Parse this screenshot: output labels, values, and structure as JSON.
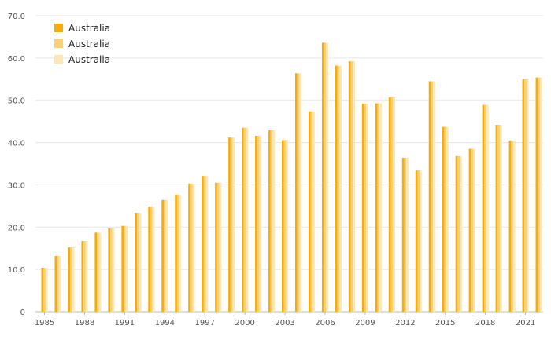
{
  "chart_data": {
    "type": "bar",
    "title": "",
    "xlabel": "",
    "ylabel": "",
    "ylim": [
      0,
      70
    ],
    "y_ticks": [
      "0",
      "10.0",
      "20.0",
      "30.0",
      "40.0",
      "50.0",
      "60.0",
      "70.0"
    ],
    "grid": true,
    "legend_position": "top-left",
    "categories": [
      "1985",
      "1986",
      "1987",
      "1988",
      "1989",
      "1990",
      "1991",
      "1992",
      "1993",
      "1994",
      "1995",
      "1996",
      "1997",
      "1998",
      "1999",
      "2000",
      "2001",
      "2002",
      "2003",
      "2004",
      "2005",
      "2006",
      "2007",
      "2008",
      "2009",
      "2010",
      "2011",
      "2012",
      "2013",
      "2014",
      "2015",
      "2016",
      "2017",
      "2018",
      "2019",
      "2020",
      "2021",
      "2022"
    ],
    "x_tick_labels": [
      "1985",
      "1988",
      "1991",
      "1994",
      "1997",
      "2000",
      "2003",
      "2006",
      "2009",
      "2012",
      "2015",
      "2018",
      "2021"
    ],
    "series": [
      {
        "name": "Australia",
        "color": "#f5ad0c",
        "values": [
          10.4,
          13.2,
          15.2,
          16.7,
          18.7,
          19.7,
          20.3,
          23.4,
          24.9,
          26.4,
          27.7,
          30.3,
          32.1,
          30.5,
          41.2,
          43.5,
          41.6,
          42.9,
          40.6,
          56.4,
          47.4,
          63.6,
          58.2,
          59.2,
          49.2,
          49.3,
          50.7,
          36.4,
          33.4,
          54.5,
          43.7,
          36.8,
          38.5,
          48.9,
          44.2,
          40.5,
          55.0,
          55.4
        ]
      },
      {
        "name": "Australia",
        "color": "#fbd075",
        "values": [
          10.4,
          13.2,
          15.2,
          16.7,
          18.7,
          19.7,
          20.3,
          23.4,
          24.9,
          26.4,
          27.7,
          30.3,
          32.1,
          30.5,
          41.2,
          43.5,
          41.6,
          42.9,
          40.6,
          56.4,
          47.4,
          63.6,
          58.2,
          59.2,
          49.2,
          49.3,
          50.7,
          36.4,
          33.4,
          54.5,
          43.7,
          36.8,
          38.5,
          48.9,
          44.2,
          40.5,
          55.0,
          55.4
        ]
      },
      {
        "name": "Australia",
        "color": "#fde7b6",
        "values": [
          10.4,
          13.2,
          15.2,
          16.7,
          18.7,
          19.7,
          20.3,
          23.4,
          24.9,
          26.4,
          27.7,
          30.3,
          32.1,
          30.5,
          41.2,
          43.5,
          41.6,
          42.9,
          40.6,
          56.4,
          47.4,
          63.6,
          58.2,
          59.2,
          49.2,
          49.3,
          50.7,
          36.4,
          33.4,
          54.5,
          43.7,
          36.8,
          38.5,
          48.9,
          44.2,
          40.5,
          55.0,
          55.4
        ]
      }
    ]
  }
}
